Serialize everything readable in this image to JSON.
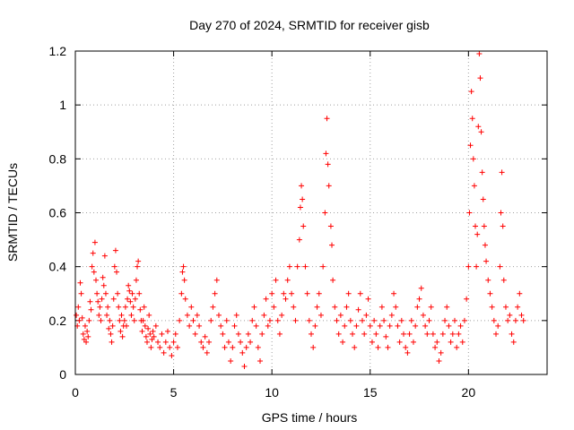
{
  "chart_data": {
    "type": "scatter",
    "title": "Day 270 of 2024, SRMTID for receiver gisb",
    "xlabel": "GPS time / hours",
    "ylabel": "SRMTID / TECUs",
    "xlim": [
      0,
      24
    ],
    "ylim": [
      0,
      1.2
    ],
    "xticks": [
      0,
      5,
      10,
      15,
      20
    ],
    "xtick_labels": [
      "0",
      "5",
      "10",
      "15",
      "20"
    ],
    "yticks": [
      0,
      0.2,
      0.4,
      0.6,
      0.8,
      1.0,
      1.2
    ],
    "ytick_labels": [
      "0",
      "0.2",
      "0.4",
      "0.6",
      "0.8",
      "1",
      "1.2"
    ],
    "grid": true,
    "marker": "plus",
    "color": "#ff0000",
    "series": [
      {
        "name": "SRMTID",
        "points": [
          [
            0.05,
            0.22
          ],
          [
            0.1,
            0.18
          ],
          [
            0.15,
            0.25
          ],
          [
            0.2,
            0.2
          ],
          [
            0.25,
            0.34
          ],
          [
            0.3,
            0.3
          ],
          [
            0.35,
            0.21
          ],
          [
            0.4,
            0.15
          ],
          [
            0.45,
            0.13
          ],
          [
            0.5,
            0.18
          ],
          [
            0.55,
            0.12
          ],
          [
            0.6,
            0.16
          ],
          [
            0.65,
            0.14
          ],
          [
            0.7,
            0.2
          ],
          [
            0.75,
            0.27
          ],
          [
            0.8,
            0.24
          ],
          [
            0.85,
            0.4
          ],
          [
            0.9,
            0.45
          ],
          [
            0.95,
            0.38
          ],
          [
            1.0,
            0.49
          ],
          [
            1.05,
            0.35
          ],
          [
            1.1,
            0.3
          ],
          [
            1.15,
            0.27
          ],
          [
            1.2,
            0.22
          ],
          [
            1.25,
            0.25
          ],
          [
            1.3,
            0.2
          ],
          [
            1.35,
            0.28
          ],
          [
            1.4,
            0.36
          ],
          [
            1.45,
            0.33
          ],
          [
            1.5,
            0.44
          ],
          [
            1.55,
            0.3
          ],
          [
            1.6,
            0.22
          ],
          [
            1.65,
            0.25
          ],
          [
            1.7,
            0.17
          ],
          [
            1.75,
            0.2
          ],
          [
            1.8,
            0.15
          ],
          [
            1.85,
            0.12
          ],
          [
            1.9,
            0.18
          ],
          [
            1.95,
            0.28
          ],
          [
            2.0,
            0.4
          ],
          [
            2.05,
            0.46
          ],
          [
            2.1,
            0.38
          ],
          [
            2.15,
            0.3
          ],
          [
            2.2,
            0.25
          ],
          [
            2.25,
            0.2
          ],
          [
            2.3,
            0.16
          ],
          [
            2.35,
            0.22
          ],
          [
            2.4,
            0.14
          ],
          [
            2.45,
            0.18
          ],
          [
            2.5,
            0.2
          ],
          [
            2.55,
            0.25
          ],
          [
            2.6,
            0.18
          ],
          [
            2.65,
            0.28
          ],
          [
            2.7,
            0.33
          ],
          [
            2.75,
            0.31
          ],
          [
            2.8,
            0.27
          ],
          [
            2.85,
            0.22
          ],
          [
            2.9,
            0.3
          ],
          [
            2.95,
            0.25
          ],
          [
            3.0,
            0.2
          ],
          [
            3.05,
            0.28
          ],
          [
            3.1,
            0.35
          ],
          [
            3.15,
            0.4
          ],
          [
            3.2,
            0.42
          ],
          [
            3.25,
            0.3
          ],
          [
            3.3,
            0.24
          ],
          [
            3.35,
            0.2
          ],
          [
            3.4,
            0.16
          ],
          [
            3.45,
            0.2
          ],
          [
            3.5,
            0.25
          ],
          [
            3.55,
            0.18
          ],
          [
            3.6,
            0.14
          ],
          [
            3.65,
            0.12
          ],
          [
            3.7,
            0.17
          ],
          [
            3.75,
            0.22
          ],
          [
            3.8,
            0.15
          ],
          [
            3.85,
            0.1
          ],
          [
            3.9,
            0.13
          ],
          [
            3.95,
            0.16
          ],
          [
            4.0,
            0.14
          ],
          [
            4.1,
            0.18
          ],
          [
            4.2,
            0.12
          ],
          [
            4.3,
            0.1
          ],
          [
            4.4,
            0.15
          ],
          [
            4.5,
            0.08
          ],
          [
            4.6,
            0.12
          ],
          [
            4.7,
            0.16
          ],
          [
            4.8,
            0.1
          ],
          [
            4.9,
            0.07
          ],
          [
            5.0,
            0.12
          ],
          [
            5.1,
            0.15
          ],
          [
            5.2,
            0.1
          ],
          [
            5.3,
            0.2
          ],
          [
            5.4,
            0.3
          ],
          [
            5.45,
            0.38
          ],
          [
            5.5,
            0.4
          ],
          [
            5.55,
            0.35
          ],
          [
            5.6,
            0.28
          ],
          [
            5.7,
            0.22
          ],
          [
            5.8,
            0.18
          ],
          [
            5.9,
            0.25
          ],
          [
            6.0,
            0.2
          ],
          [
            6.1,
            0.15
          ],
          [
            6.2,
            0.22
          ],
          [
            6.3,
            0.18
          ],
          [
            6.4,
            0.12
          ],
          [
            6.5,
            0.1
          ],
          [
            6.6,
            0.14
          ],
          [
            6.7,
            0.08
          ],
          [
            6.8,
            0.12
          ],
          [
            6.9,
            0.2
          ],
          [
            7.0,
            0.25
          ],
          [
            7.1,
            0.3
          ],
          [
            7.2,
            0.35
          ],
          [
            7.3,
            0.22
          ],
          [
            7.4,
            0.18
          ],
          [
            7.5,
            0.15
          ],
          [
            7.6,
            0.1
          ],
          [
            7.7,
            0.2
          ],
          [
            7.8,
            0.12
          ],
          [
            7.9,
            0.05
          ],
          [
            8.0,
            0.1
          ],
          [
            8.1,
            0.18
          ],
          [
            8.2,
            0.22
          ],
          [
            8.3,
            0.15
          ],
          [
            8.4,
            0.12
          ],
          [
            8.5,
            0.08
          ],
          [
            8.6,
            0.03
          ],
          [
            8.7,
            0.1
          ],
          [
            8.8,
            0.15
          ],
          [
            8.9,
            0.12
          ],
          [
            9.0,
            0.2
          ],
          [
            9.1,
            0.25
          ],
          [
            9.2,
            0.18
          ],
          [
            9.3,
            0.1
          ],
          [
            9.4,
            0.05
          ],
          [
            9.5,
            0.15
          ],
          [
            9.6,
            0.22
          ],
          [
            9.7,
            0.28
          ],
          [
            9.8,
            0.18
          ],
          [
            9.9,
            0.2
          ],
          [
            10.0,
            0.3
          ],
          [
            10.1,
            0.25
          ],
          [
            10.2,
            0.35
          ],
          [
            10.3,
            0.2
          ],
          [
            10.4,
            0.15
          ],
          [
            10.5,
            0.22
          ],
          [
            10.6,
            0.3
          ],
          [
            10.7,
            0.28
          ],
          [
            10.8,
            0.35
          ],
          [
            10.9,
            0.4
          ],
          [
            11.0,
            0.3
          ],
          [
            11.1,
            0.25
          ],
          [
            11.2,
            0.2
          ],
          [
            11.3,
            0.4
          ],
          [
            11.4,
            0.5
          ],
          [
            11.45,
            0.62
          ],
          [
            11.5,
            0.7
          ],
          [
            11.55,
            0.65
          ],
          [
            11.6,
            0.55
          ],
          [
            11.7,
            0.4
          ],
          [
            11.8,
            0.3
          ],
          [
            11.9,
            0.2
          ],
          [
            12.0,
            0.15
          ],
          [
            12.1,
            0.1
          ],
          [
            12.2,
            0.18
          ],
          [
            12.3,
            0.25
          ],
          [
            12.4,
            0.3
          ],
          [
            12.5,
            0.22
          ],
          [
            12.6,
            0.4
          ],
          [
            12.7,
            0.6
          ],
          [
            12.75,
            0.82
          ],
          [
            12.8,
            0.95
          ],
          [
            12.85,
            0.78
          ],
          [
            12.9,
            0.7
          ],
          [
            13.0,
            0.55
          ],
          [
            13.05,
            0.48
          ],
          [
            13.1,
            0.35
          ],
          [
            13.2,
            0.25
          ],
          [
            13.3,
            0.2
          ],
          [
            13.4,
            0.15
          ],
          [
            13.5,
            0.22
          ],
          [
            13.6,
            0.12
          ],
          [
            13.7,
            0.18
          ],
          [
            13.8,
            0.25
          ],
          [
            13.9,
            0.3
          ],
          [
            14.0,
            0.2
          ],
          [
            14.1,
            0.15
          ],
          [
            14.2,
            0.1
          ],
          [
            14.3,
            0.18
          ],
          [
            14.4,
            0.24
          ],
          [
            14.5,
            0.3
          ],
          [
            14.6,
            0.2
          ],
          [
            14.7,
            0.15
          ],
          [
            14.8,
            0.22
          ],
          [
            14.9,
            0.28
          ],
          [
            15.0,
            0.18
          ],
          [
            15.1,
            0.12
          ],
          [
            15.2,
            0.2
          ],
          [
            15.3,
            0.15
          ],
          [
            15.4,
            0.1
          ],
          [
            15.5,
            0.18
          ],
          [
            15.6,
            0.25
          ],
          [
            15.7,
            0.2
          ],
          [
            15.8,
            0.14
          ],
          [
            15.9,
            0.1
          ],
          [
            16.0,
            0.18
          ],
          [
            16.1,
            0.22
          ],
          [
            16.2,
            0.3
          ],
          [
            16.3,
            0.25
          ],
          [
            16.4,
            0.18
          ],
          [
            16.5,
            0.12
          ],
          [
            16.6,
            0.2
          ],
          [
            16.7,
            0.15
          ],
          [
            16.8,
            0.1
          ],
          [
            16.9,
            0.08
          ],
          [
            17.0,
            0.15
          ],
          [
            17.1,
            0.2
          ],
          [
            17.2,
            0.12
          ],
          [
            17.3,
            0.18
          ],
          [
            17.4,
            0.25
          ],
          [
            17.5,
            0.28
          ],
          [
            17.6,
            0.32
          ],
          [
            17.7,
            0.22
          ],
          [
            17.8,
            0.18
          ],
          [
            17.9,
            0.15
          ],
          [
            18.0,
            0.2
          ],
          [
            18.1,
            0.25
          ],
          [
            18.2,
            0.15
          ],
          [
            18.3,
            0.1
          ],
          [
            18.4,
            0.12
          ],
          [
            18.5,
            0.05
          ],
          [
            18.6,
            0.08
          ],
          [
            18.7,
            0.15
          ],
          [
            18.8,
            0.2
          ],
          [
            18.9,
            0.25
          ],
          [
            19.0,
            0.18
          ],
          [
            19.1,
            0.12
          ],
          [
            19.2,
            0.15
          ],
          [
            19.3,
            0.2
          ],
          [
            19.4,
            0.1
          ],
          [
            19.5,
            0.15
          ],
          [
            19.6,
            0.18
          ],
          [
            19.7,
            0.12
          ],
          [
            19.8,
            0.2
          ],
          [
            19.9,
            0.28
          ],
          [
            20.0,
            0.4
          ],
          [
            20.05,
            0.6
          ],
          [
            20.1,
            0.85
          ],
          [
            20.15,
            1.05
          ],
          [
            20.2,
            0.95
          ],
          [
            20.25,
            0.8
          ],
          [
            20.3,
            0.7
          ],
          [
            20.35,
            0.55
          ],
          [
            20.4,
            0.4
          ],
          [
            20.45,
            0.52
          ],
          [
            20.5,
            0.92
          ],
          [
            20.55,
            1.19
          ],
          [
            20.6,
            1.1
          ],
          [
            20.65,
            0.9
          ],
          [
            20.7,
            0.75
          ],
          [
            20.75,
            0.65
          ],
          [
            20.8,
            0.55
          ],
          [
            20.85,
            0.48
          ],
          [
            20.9,
            0.42
          ],
          [
            21.0,
            0.35
          ],
          [
            21.1,
            0.3
          ],
          [
            21.2,
            0.25
          ],
          [
            21.3,
            0.2
          ],
          [
            21.4,
            0.15
          ],
          [
            21.5,
            0.18
          ],
          [
            21.6,
            0.4
          ],
          [
            21.65,
            0.6
          ],
          [
            21.7,
            0.75
          ],
          [
            21.75,
            0.55
          ],
          [
            21.8,
            0.35
          ],
          [
            21.9,
            0.25
          ],
          [
            22.0,
            0.2
          ],
          [
            22.1,
            0.22
          ],
          [
            22.2,
            0.15
          ],
          [
            22.3,
            0.12
          ],
          [
            22.4,
            0.2
          ],
          [
            22.5,
            0.25
          ],
          [
            22.6,
            0.3
          ],
          [
            22.7,
            0.22
          ],
          [
            22.8,
            0.2
          ]
        ]
      }
    ]
  }
}
